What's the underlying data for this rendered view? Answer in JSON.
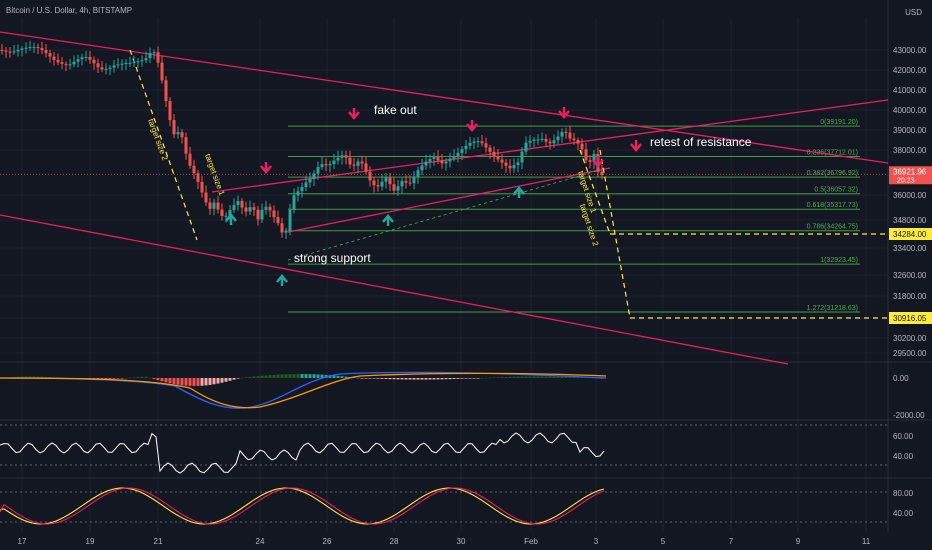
{
  "header": {
    "symbol": "Bitcoin / U.S. Dollar, 4h, BITSTAMP",
    "currency": "USD"
  },
  "colors": {
    "bg": "#131722",
    "grid": "#1e2230",
    "up": "#26a69a",
    "down": "#ef5350",
    "channel": "#e91e63",
    "fib": "#4caf50",
    "yellow": "#ffeb3b",
    "text": "#b2b5be"
  },
  "chart_data": {
    "type": "candlestick",
    "price_axis": [
      {
        "label": "43000.00",
        "value": 43000
      },
      {
        "label": "42000.00",
        "value": 42000
      },
      {
        "label": "41000.00",
        "value": 41000
      },
      {
        "label": "40000.00",
        "value": 40000
      },
      {
        "label": "39000.00",
        "value": 39000
      },
      {
        "label": "38000.00",
        "value": 38000
      },
      {
        "label": "36000.00",
        "value": 36000
      },
      {
        "label": "34800.00",
        "value": 34800
      },
      {
        "label": "33400.00",
        "value": 33400
      },
      {
        "label": "32600.00",
        "value": 32600
      },
      {
        "label": "31800.00",
        "value": 31800
      },
      {
        "label": "31000.00",
        "value": 31000
      },
      {
        "label": "30200.00",
        "value": 30200
      },
      {
        "label": "29500.00",
        "value": 29500
      }
    ],
    "date_axis": [
      "17",
      "19",
      "21",
      "24",
      "26",
      "28",
      "30",
      "Feb",
      "3",
      "5",
      "7",
      "9",
      "11"
    ],
    "current_price": {
      "value": "36921.96",
      "countdown": "20:23"
    },
    "price_tags": [
      {
        "label": "34284.00",
        "value": 34284
      },
      {
        "label": "30916.05",
        "value": 30916
      }
    ],
    "fib_levels": [
      {
        "label": "0(39191.20)",
        "value": 39191.2
      },
      {
        "label": "0.236(37712.01)",
        "value": 37712.01
      },
      {
        "label": "0.382(36796.92)",
        "value": 36796.92
      },
      {
        "label": "0.5(36057.32)",
        "value": 36057.32
      },
      {
        "label": "0.618(35317.73)",
        "value": 35317.73
      },
      {
        "label": "0.786(34264.75)",
        "value": 34264.75
      },
      {
        "label": "1(32923.45)",
        "value": 32923.45
      },
      {
        "label": "1.272(31218.63)",
        "value": 31218.63
      }
    ],
    "annotations": [
      "fake out",
      "retest of resistance",
      "strong support",
      "target size 2",
      "target size 1",
      "target size 1",
      "target size 2"
    ],
    "close_path": [
      [
        0,
        43000
      ],
      [
        20,
        43150
      ],
      [
        40,
        42900
      ],
      [
        55,
        42600
      ],
      [
        70,
        42350
      ],
      [
        85,
        42500
      ],
      [
        100,
        42100
      ],
      [
        115,
        42400
      ],
      [
        130,
        42200
      ],
      [
        140,
        42300
      ],
      [
        148,
        42700
      ],
      [
        152,
        43200
      ],
      [
        156,
        42900
      ],
      [
        160,
        42200
      ],
      [
        165,
        40800
      ],
      [
        170,
        39500
      ],
      [
        175,
        38500
      ],
      [
        180,
        38900
      ],
      [
        185,
        37800
      ],
      [
        190,
        37200
      ],
      [
        195,
        36900
      ],
      [
        200,
        36500
      ],
      [
        205,
        35900
      ],
      [
        210,
        35500
      ],
      [
        215,
        35800
      ],
      [
        220,
        35000
      ],
      [
        225,
        34800
      ],
      [
        230,
        35100
      ],
      [
        238,
        35600
      ],
      [
        245,
        35200
      ],
      [
        252,
        35700
      ],
      [
        258,
        35000
      ],
      [
        264,
        35600
      ],
      [
        270,
        35200
      ],
      [
        275,
        34700
      ],
      [
        280,
        34300
      ],
      [
        284,
        33700
      ],
      [
        288,
        34600
      ],
      [
        292,
        35900
      ],
      [
        298,
        36300
      ],
      [
        305,
        36700
      ],
      [
        312,
        36900
      ],
      [
        320,
        37300
      ],
      [
        328,
        37100
      ],
      [
        336,
        37500
      ],
      [
        344,
        37900
      ],
      [
        352,
        37400
      ],
      [
        360,
        37700
      ],
      [
        366,
        37000
      ],
      [
        372,
        36300
      ],
      [
        378,
        36200
      ],
      [
        386,
        36700
      ],
      [
        394,
        36300
      ],
      [
        402,
        36800
      ],
      [
        410,
        36600
      ],
      [
        418,
        37000
      ],
      [
        426,
        37300
      ],
      [
        434,
        37600
      ],
      [
        442,
        37500
      ],
      [
        450,
        37800
      ],
      [
        460,
        38000
      ],
      [
        470,
        38200
      ],
      [
        480,
        38300
      ],
      [
        490,
        38000
      ],
      [
        500,
        37700
      ],
      [
        510,
        37200
      ],
      [
        518,
        37300
      ],
      [
        526,
        38200
      ],
      [
        534,
        38500
      ],
      [
        542,
        38700
      ],
      [
        550,
        38500
      ],
      [
        558,
        38700
      ],
      [
        564,
        38900
      ],
      [
        570,
        38400
      ],
      [
        576,
        38300
      ],
      [
        582,
        38000
      ],
      [
        588,
        37400
      ],
      [
        594,
        38000
      ],
      [
        598,
        37200
      ],
      [
        604,
        36920
      ]
    ],
    "macd": {
      "zero_label": "0.00",
      "low_label": "-2000.00"
    },
    "rsi": {
      "labels": [
        "60.00",
        "40.00"
      ]
    },
    "stoch": {
      "labels": [
        "80.00",
        "40.00"
      ]
    }
  }
}
